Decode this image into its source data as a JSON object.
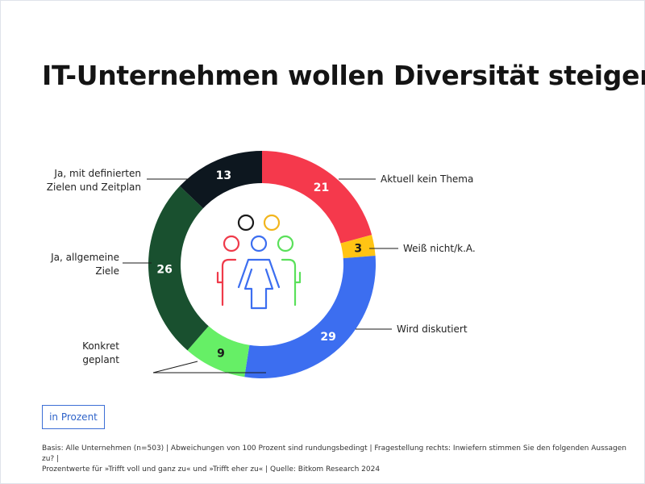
{
  "title": "IT-Unternehmen wollen Diversität steigern",
  "unit_label": "in Prozent",
  "footnote": {
    "line1": "Basis: Alle Unternehmen (n=503) | Abweichungen von 100 Prozent sind rundungsbedingt | Fragestellung rechts: Inwiefern stimmen Sie den folgenden Aussagen zu? |",
    "line2": "Prozentwerte für »Trifft voll und ganz zu« und »Trifft eher zu« | Quelle: Bitkom Research 2024"
  },
  "icon": "diverse-people-icon",
  "chart_data": {
    "type": "pie",
    "variant": "donut",
    "title": "IT-Unternehmen wollen Diversität steigern",
    "unit": "in Prozent",
    "slices": [
      {
        "label": "Aktuell kein Thema",
        "label_lines": [
          "Aktuell kein Thema"
        ],
        "value": 21,
        "color": "#f5394c",
        "text_color": "#ffffff"
      },
      {
        "label": "Weiß nicht/k.A.",
        "label_lines": [
          "Weiß nicht/k.A."
        ],
        "value": 3,
        "color": "#ffc414",
        "text_color": "#1a1a1a"
      },
      {
        "label": "Wird diskutiert",
        "label_lines": [
          "Wird diskutiert"
        ],
        "value": 29,
        "color": "#3c6ef0",
        "text_color": "#ffffff"
      },
      {
        "label": "Konkret geplant",
        "label_lines": [
          "Konkret",
          "geplant"
        ],
        "value": 9,
        "color": "#66ef66",
        "text_color": "#1a1a1a"
      },
      {
        "label": "Ja, allgemeine Ziele",
        "label_lines": [
          "Ja, allgemeine",
          "Ziele"
        ],
        "value": 26,
        "color": "#19502f",
        "text_color": "#ffffff"
      },
      {
        "label": "Ja, mit definierten Zielen und Zeitplan",
        "label_lines": [
          "Ja, mit definierten",
          "Zielen und Zeitplan"
        ],
        "value": 13,
        "color": "#0d171f",
        "text_color": "#ffffff"
      }
    ]
  }
}
